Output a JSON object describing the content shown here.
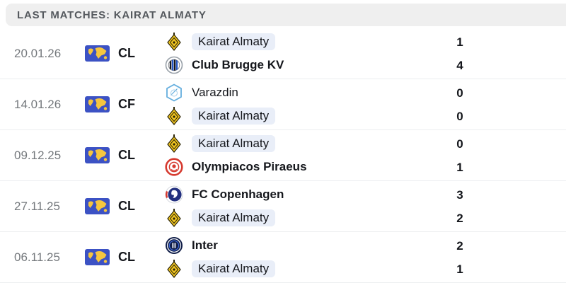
{
  "header": {
    "title": "LAST MATCHES: KAIRAT ALMATY"
  },
  "colors": {
    "header_bg": "#efefef",
    "header_text": "#55595e",
    "date_text": "#75797d",
    "text_dark": "#15171c",
    "highlight_bg": "#e9eef8",
    "row_border": "#eceef0",
    "flag_blue": "#3c52c4",
    "flag_yellow": "#f6c63f"
  },
  "icons": {
    "competition_flag": "international-flag-icon"
  },
  "matches": [
    {
      "date": "20.01.26",
      "competition": "CL",
      "teams": [
        {
          "name": "Kairat Almaty",
          "logo": "kairat-almaty",
          "score": "1",
          "highlighted": true,
          "winner": false
        },
        {
          "name": "Club Brugge KV",
          "logo": "club-brugge",
          "score": "4",
          "highlighted": false,
          "winner": true
        }
      ]
    },
    {
      "date": "14.01.26",
      "competition": "CF",
      "teams": [
        {
          "name": "Varazdin",
          "logo": "varazdin",
          "score": "0",
          "highlighted": false,
          "winner": false
        },
        {
          "name": "Kairat Almaty",
          "logo": "kairat-almaty",
          "score": "0",
          "highlighted": true,
          "winner": false
        }
      ]
    },
    {
      "date": "09.12.25",
      "competition": "CL",
      "teams": [
        {
          "name": "Kairat Almaty",
          "logo": "kairat-almaty",
          "score": "0",
          "highlighted": true,
          "winner": false
        },
        {
          "name": "Olympiacos Piraeus",
          "logo": "olympiacos",
          "score": "1",
          "highlighted": false,
          "winner": true
        }
      ]
    },
    {
      "date": "27.11.25",
      "competition": "CL",
      "teams": [
        {
          "name": "FC Copenhagen",
          "logo": "fc-copenhagen",
          "score": "3",
          "highlighted": false,
          "winner": true
        },
        {
          "name": "Kairat Almaty",
          "logo": "kairat-almaty",
          "score": "2",
          "highlighted": true,
          "winner": false
        }
      ]
    },
    {
      "date": "06.11.25",
      "competition": "CL",
      "teams": [
        {
          "name": "Inter",
          "logo": "inter",
          "score": "2",
          "highlighted": false,
          "winner": true
        },
        {
          "name": "Kairat Almaty",
          "logo": "kairat-almaty",
          "score": "1",
          "highlighted": true,
          "winner": false
        }
      ]
    }
  ]
}
